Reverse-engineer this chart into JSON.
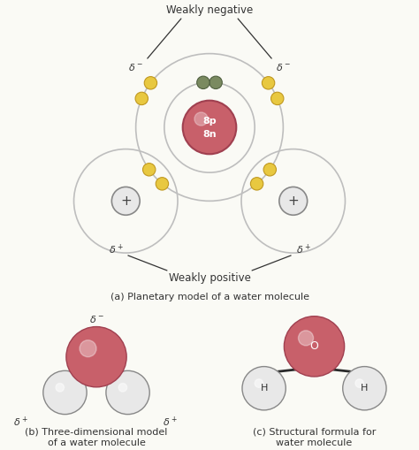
{
  "background_color": "#FAFAF5",
  "oxygen_nucleus_color": "#C8606A",
  "oxygen_nucleus_edge": "#A04050",
  "hydrogen_nucleus_color": "#E8E8E8",
  "hydrogen_nucleus_edge": "#888888",
  "electron_yellow_color": "#E8C840",
  "electron_yellow_edge": "#C09820",
  "electron_green_color": "#7A8A60",
  "electron_green_edge": "#506040",
  "orbit_color": "#BEBEBE",
  "orbit_lw": 1.2,
  "text_color": "#333333",
  "label_fontsize": 8.5,
  "delta_fontsize": 8.0,
  "caption_fontsize": 8.0,
  "title_a": "(a) Planetary model of a water molecule",
  "title_b": "(b) Three-dimensional model\nof a water molecule",
  "title_c": "(c) Structural formula for\nwater molecule"
}
